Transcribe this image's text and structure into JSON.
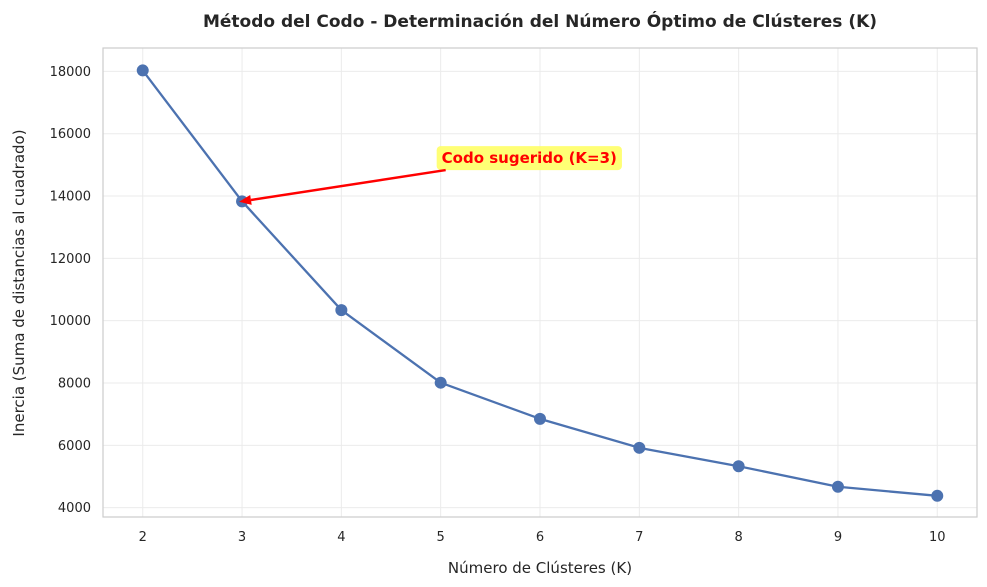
{
  "chart_data": {
    "type": "line",
    "title": "Método del Codo - Determinación del Número Óptimo de Clústeres (K)",
    "xlabel": "Número de Clústeres (K)",
    "ylabel": "Inercia (Suma de distancias al cuadrado)",
    "x": [
      2,
      3,
      4,
      5,
      6,
      7,
      8,
      9,
      10
    ],
    "series": [
      {
        "values": [
          18030,
          13830,
          10340,
          8010,
          6850,
          5920,
          5330,
          4670,
          4380
        ],
        "color": "#4c72b0"
      }
    ],
    "xlim": [
      1.6,
      10.4
    ],
    "ylim": [
      3700,
      18750
    ],
    "xticks": [
      "2",
      "3",
      "4",
      "5",
      "6",
      "7",
      "8",
      "9",
      "10"
    ],
    "yticks": [
      "4000",
      "6000",
      "8000",
      "10000",
      "12000",
      "14000",
      "16000",
      "18000"
    ],
    "grid": true,
    "annotation": {
      "text": "Codo sugerido (K=3)",
      "point_x": 3,
      "point_y": 13830,
      "text_x": 5,
      "text_y": 15250,
      "text_color": "#ff0000",
      "box_color": "#ffff66",
      "arrow_color": "#ff0000"
    }
  }
}
